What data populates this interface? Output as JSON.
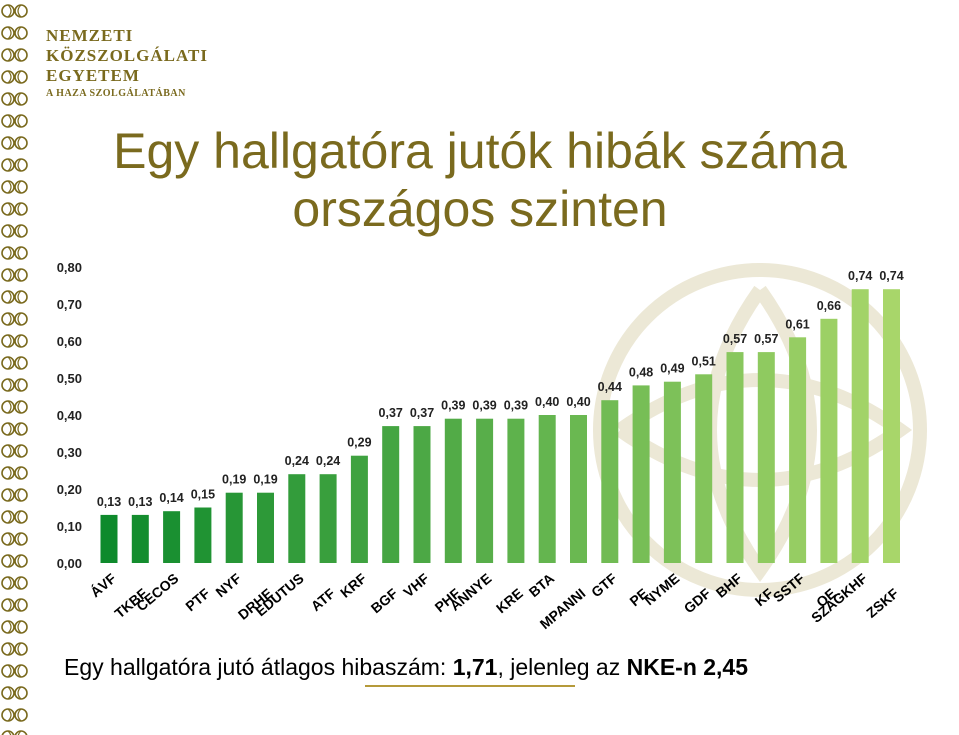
{
  "logo": {
    "line1": "NEMZETI",
    "line2": "KÖZSZOLGÁLATI",
    "line3": "EGYETEM",
    "line4": "A HAZA SZOLGÁLATÁBAN"
  },
  "title": {
    "line1": "Egy hallgatóra jutók hibák száma",
    "line2": "országos szinten"
  },
  "footer": {
    "prefix": "Egy hallgatóra jutó átlagos hibaszám: ",
    "value1": "1,71",
    "middle": ", jelenleg az ",
    "value2": "NKE-n 2,45"
  },
  "colors": {
    "title": "#7a6a1e",
    "bar_dark": "#0e8a2c",
    "bar_light": "#a8d66a"
  },
  "chart_data": {
    "type": "bar",
    "ylim": [
      0,
      0.8
    ],
    "yticks": [
      "0,00",
      "0,10",
      "0,20",
      "0,30",
      "0,40",
      "0,50",
      "0,60",
      "0,70",
      "0,80"
    ],
    "grid": false,
    "categories": [
      "ÁVF",
      "TKBF",
      "CECOS",
      "PTF",
      "NYF",
      "DRHE",
      "EDUTUS",
      "ATF",
      "KRF",
      "BGF",
      "VHF",
      "PHF",
      "ANNYE",
      "KRE",
      "BTA",
      "MPANNI",
      "GTF",
      "PE",
      "NYME",
      "GDF",
      "BHF",
      "KF",
      "SSTF",
      "OE",
      "SZAGKHF",
      "ZSKF"
    ],
    "values": [
      0.13,
      0.13,
      0.14,
      0.15,
      0.19,
      0.19,
      0.24,
      0.24,
      0.29,
      0.37,
      0.37,
      0.39,
      0.39,
      0.39,
      0.4,
      0.4,
      0.44,
      0.48,
      0.49,
      0.51,
      0.57,
      0.57,
      0.61,
      0.66,
      0.74,
      0.74
    ],
    "labels": [
      "0,13",
      "0,13",
      "0,14",
      "0,15",
      "0,19",
      "0,19",
      "0,24",
      "0,24",
      "0,29",
      "0,37",
      "0,37",
      "0,39",
      "0,39",
      "0,39",
      "0,40",
      "0,40",
      "0,44",
      "0,48",
      "0,49",
      "0,51",
      "0,57",
      "0,57",
      "0,61",
      "0,66",
      "0,74",
      "0,74"
    ]
  }
}
